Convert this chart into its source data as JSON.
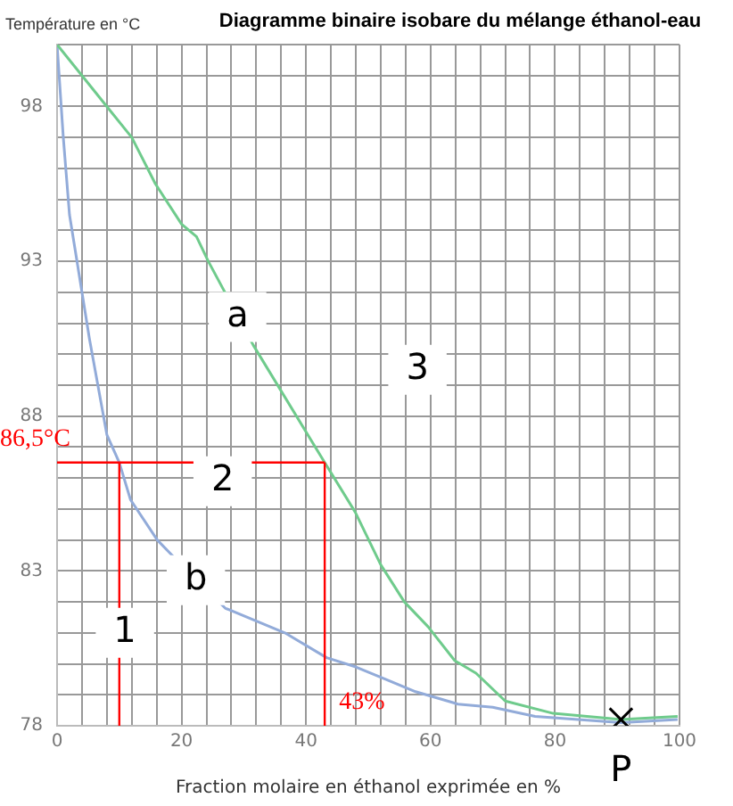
{
  "chart_data": {
    "type": "line",
    "title": "Diagramme binaire isobare du mélange éthanol-eau",
    "xlabel": "Fraction molaire en éthanol exprimée en %",
    "ylabel": "Température en °C",
    "series": [
      {
        "color": "#6fcb8c",
        "x": [
          0,
          4,
          8,
          12,
          15.8,
          20,
          22.4,
          24.3,
          31.5,
          43,
          47.9,
          52,
          55.8,
          59.6,
          63.9,
          67.3,
          72,
          79.7,
          90.6,
          99.7
        ],
        "values": [
          100,
          99,
          98,
          97,
          95.5,
          94.2,
          93.8,
          93,
          90.3,
          86.5,
          84.9,
          83.2,
          82,
          81.2,
          80.1,
          79.7,
          78.8,
          78.4,
          78.2,
          78.3
        ]
      },
      {
        "color": "#92abd9",
        "x": [
          0,
          1,
          2,
          3.2,
          5.2,
          8,
          10,
          11.8,
          16.1,
          18.5,
          27,
          36.6,
          43.3,
          48,
          57.6,
          64.4,
          70,
          76.8,
          90.6,
          99.7
        ],
        "values": [
          100,
          97,
          94.5,
          93,
          90.5,
          87.4,
          86.5,
          85.3,
          84,
          83.5,
          81.8,
          81,
          80.2,
          79.9,
          79.1,
          78.7,
          78.6,
          78.3,
          78.1,
          78.2
        ]
      },
      {
        "type": "scatter",
        "color": "#000000",
        "marker": "cross",
        "x": [
          90.6
        ],
        "values": [
          78.2
        ]
      }
    ],
    "xlim": [
      0,
      100
    ],
    "ylim": [
      78,
      100
    ],
    "xticks": [
      0,
      {
        "value": 4,
        "label": null
      },
      {
        "value": 8,
        "label": null
      },
      {
        "value": 12,
        "label": null
      },
      {
        "value": 16,
        "label": null
      },
      20,
      {
        "value": 24,
        "label": null
      },
      {
        "value": 28,
        "label": null
      },
      {
        "value": 32,
        "label": null
      },
      {
        "value": 36,
        "label": null
      },
      40,
      {
        "value": 44,
        "label": null
      },
      {
        "value": 48,
        "label": null
      },
      {
        "value": 52,
        "label": null
      },
      {
        "value": 56,
        "label": null
      },
      60,
      {
        "value": 64,
        "label": null
      },
      {
        "value": 68,
        "label": null
      },
      {
        "value": 72,
        "label": null
      },
      {
        "value": 76,
        "label": null
      },
      80,
      {
        "value": 84,
        "label": null
      },
      {
        "value": 88,
        "label": null
      },
      {
        "value": 92,
        "label": null
      },
      {
        "value": 96,
        "label": null
      },
      100
    ],
    "yticks": [
      78,
      {
        "value": 79,
        "label": null
      },
      {
        "value": 80,
        "label": null
      },
      {
        "value": 81,
        "label": null
      },
      {
        "value": 82,
        "label": null
      },
      83,
      {
        "value": 84,
        "label": null
      },
      {
        "value": 85,
        "label": null
      },
      {
        "value": 86,
        "label": null
      },
      {
        "value": 87,
        "label": null
      },
      88,
      {
        "value": 89,
        "label": null
      },
      {
        "value": 90,
        "label": null
      },
      {
        "value": 91,
        "label": null
      },
      {
        "value": 92,
        "label": null
      },
      93,
      {
        "value": 94,
        "label": null
      },
      {
        "value": 95,
        "label": null
      },
      {
        "value": 96,
        "label": null
      },
      {
        "value": 97,
        "label": null
      },
      98,
      {
        "value": 99,
        "label": null
      },
      {
        "value": 100,
        "label": null
      }
    ],
    "grid": true,
    "legend": false,
    "marker": "none",
    "ref_lines": [
      {
        "axis": "y",
        "value": 86.5,
        "label": "86,5°C",
        "color": "#ff0000"
      },
      {
        "axis": "x",
        "value": 10,
        "color": "#ff0000"
      },
      {
        "axis": "x",
        "value": 43,
        "label": "43%",
        "color": "#ff0000"
      }
    ],
    "annotations": [
      {
        "text": "a",
        "x": 29,
        "y": 91.2
      },
      {
        "text": "3",
        "x": 57.9,
        "y": 89.5
      },
      {
        "text": "2",
        "x": 26.6,
        "y": 85.9
      },
      {
        "text": "b",
        "x": 22.3,
        "y": 82.7
      },
      {
        "text": "1",
        "x": 10.9,
        "y": 81
      },
      {
        "text": "P",
        "x": 90.6,
        "y": 78.2
      }
    ]
  }
}
